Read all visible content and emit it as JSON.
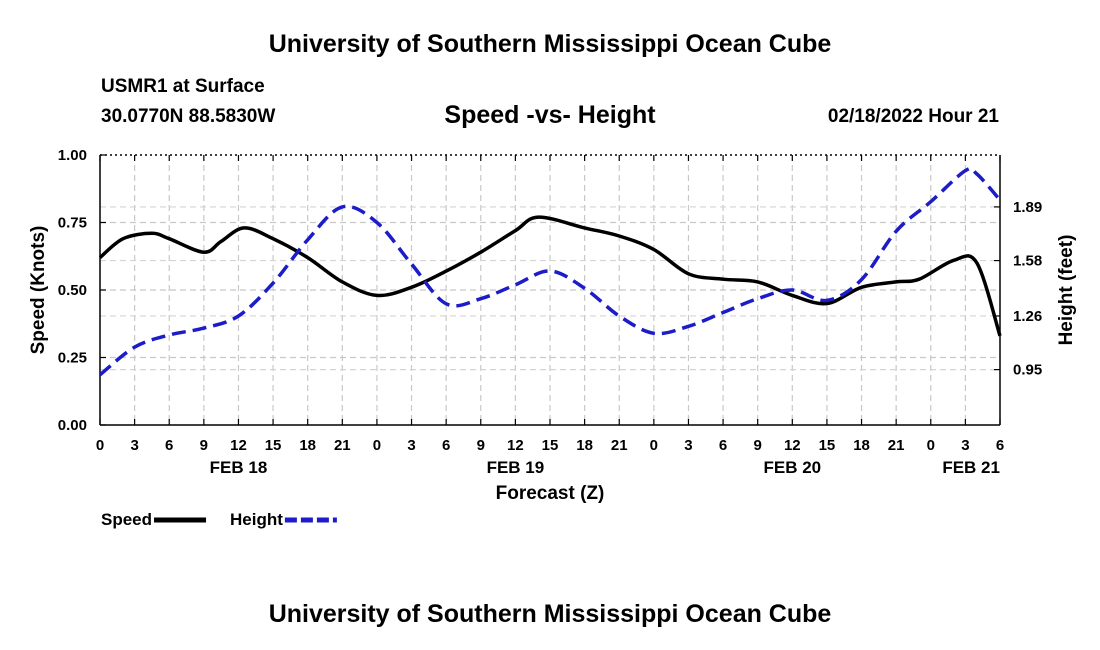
{
  "header": {
    "title": "University of Southern Mississippi Ocean Cube",
    "station": "USMR1 at Surface",
    "coordinates": "30.0770N  88.5830W",
    "chart_title": "Speed -vs- Height",
    "datetime": "02/18/2022 Hour 21"
  },
  "footer": {
    "title": "University of Southern Mississippi Ocean Cube"
  },
  "chart_data": {
    "type": "line",
    "title": "Speed -vs- Height",
    "xlabel": "Forecast (Z)",
    "ylabel": "Speed (Knots)",
    "y2label": "Height (feet)",
    "xlim": [
      0,
      78
    ],
    "ylim": [
      0,
      1
    ],
    "y2lim": [
      0.63,
      2.19
    ],
    "grid": true,
    "x_ticks": [
      0,
      3,
      6,
      9,
      12,
      15,
      18,
      21,
      24,
      27,
      30,
      33,
      36,
      39,
      42,
      45,
      48,
      51,
      54,
      57,
      60,
      63,
      66,
      69,
      72,
      75,
      78
    ],
    "x_tick_labels": [
      "0",
      "3",
      "6",
      "9",
      "12",
      "15",
      "18",
      "21",
      "0",
      "3",
      "6",
      "9",
      "12",
      "15",
      "18",
      "21",
      "0",
      "3",
      "6",
      "9",
      "12",
      "15",
      "18",
      "21",
      "0",
      "3",
      "6"
    ],
    "date_labels": [
      {
        "label": "FEB 18",
        "x": 12
      },
      {
        "label": "FEB 19",
        "x": 36
      },
      {
        "label": "FEB 20",
        "x": 60
      },
      {
        "label": "FEB 21",
        "x": 75.5
      }
    ],
    "y_ticks": [
      0,
      0.25,
      0.5,
      0.75,
      1.0
    ],
    "y_tick_labels": [
      "0.00",
      "0.25",
      "0.50",
      "0.75",
      "1.00"
    ],
    "y2_ticks": [
      0.95,
      1.26,
      1.58,
      1.89
    ],
    "y2_tick_labels": [
      "0.95",
      "1.26",
      "1.58",
      "1.89"
    ],
    "series": [
      {
        "name": "Speed",
        "axis": "left",
        "color": "#000000",
        "dash": "solid",
        "x": [
          0,
          2,
          4.5,
          6,
          9,
          10.5,
          12.5,
          15,
          18,
          21,
          24,
          27,
          30,
          33,
          36,
          38,
          42,
          45,
          48,
          51,
          54,
          57,
          60,
          63,
          66,
          69,
          71,
          74,
          76,
          78
        ],
        "y": [
          0.62,
          0.69,
          0.71,
          0.69,
          0.64,
          0.68,
          0.73,
          0.69,
          0.62,
          0.53,
          0.48,
          0.51,
          0.57,
          0.64,
          0.72,
          0.77,
          0.73,
          0.7,
          0.65,
          0.56,
          0.54,
          0.53,
          0.48,
          0.45,
          0.51,
          0.53,
          0.54,
          0.61,
          0.6,
          0.33
        ]
      },
      {
        "name": "Height",
        "axis": "right",
        "color": "#1c1cc8",
        "dash": "dashed",
        "x": [
          0,
          3,
          6,
          9,
          12,
          15,
          18,
          21,
          24,
          27,
          30,
          33,
          36,
          39,
          42,
          45,
          48,
          51,
          54,
          57,
          60,
          63,
          66,
          69,
          72,
          75,
          76,
          78
        ],
        "y": [
          0.92,
          1.08,
          1.15,
          1.19,
          1.26,
          1.45,
          1.7,
          1.89,
          1.8,
          1.56,
          1.33,
          1.36,
          1.44,
          1.52,
          1.42,
          1.26,
          1.16,
          1.2,
          1.28,
          1.36,
          1.41,
          1.35,
          1.47,
          1.75,
          1.92,
          2.1,
          2.08,
          1.93
        ]
      }
    ]
  }
}
